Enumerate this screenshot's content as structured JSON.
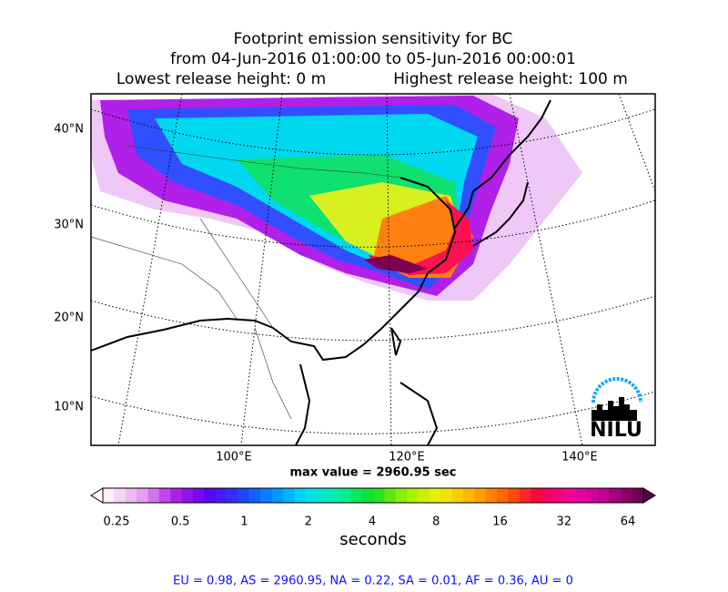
{
  "title": [
    "Footprint emission sensitivity for BC",
    "from 04-Jun-2016 01:00:00 to 05-Jun-2016 00:00:01"
  ],
  "release": {
    "lowest": "Lowest release height: 0 m",
    "highest": "Highest release height: 100 m"
  },
  "map": {
    "lat_labels": [
      "40°N",
      "30°N",
      "20°N",
      "10°N"
    ],
    "lon_labels": [
      "100°E",
      "120°E",
      "140°E"
    ],
    "logo": "NILU"
  },
  "max_value": "max value = 2960.95 sec",
  "colorbar": {
    "tick_labels": [
      "0.25",
      "0.5",
      "1",
      "2",
      "4",
      "8",
      "16",
      "32",
      "64"
    ],
    "label": "seconds"
  },
  "footer": "EU = 0.98,  AS = 2960.95,  NA = 0.22,  SA = 0.01,  AF = 0.36,  AU = 0"
}
